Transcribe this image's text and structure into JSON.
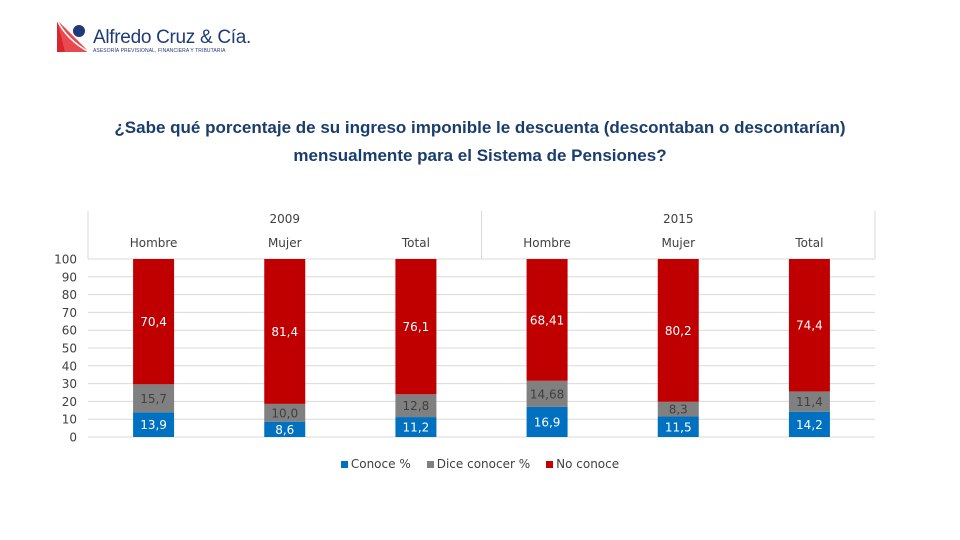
{
  "logo": {
    "name": "Alfredo Cruz & Cía.",
    "tagline": "ASESORÍA PREVISIONAL, FINANCIERA Y TRIBUTARIA"
  },
  "title_line1": "¿Sabe qué porcentaje de su ingreso imponible le descuenta (descontaban o descontarían)",
  "title_line2": "mensualmente para el Sistema de Pensiones?",
  "colors": {
    "conoce": "#0070c0",
    "dice_conocer": "#808080",
    "no_conoce": "#c00000"
  },
  "chart_data": {
    "type": "bar",
    "stacked": true,
    "title": "¿Sabe qué porcentaje de su ingreso imponible le descuenta (descontaban o descontarían) mensualmente para el Sistema de Pensiones?",
    "groups": [
      {
        "label": "2009",
        "categories": [
          "Hombre",
          "Mujer",
          "Total"
        ]
      },
      {
        "label": "2015",
        "categories": [
          "Hombre",
          "Mujer",
          "Total"
        ]
      }
    ],
    "categories": [
      "Hombre",
      "Mujer",
      "Total",
      "Hombre",
      "Mujer",
      "Total"
    ],
    "series": [
      {
        "name": "Conoce %",
        "values": [
          13.9,
          8.6,
          11.2,
          16.9,
          11.5,
          14.2
        ],
        "labels": [
          "13,9",
          "8,6",
          "11,2",
          "16,9",
          "11,5",
          "14,2"
        ]
      },
      {
        "name": "Dice conocer %",
        "values": [
          15.7,
          10.0,
          12.8,
          14.68,
          8.3,
          11.4
        ],
        "labels": [
          "15,7",
          "10,0",
          "12,8",
          "14,68",
          "8,3",
          "11,4"
        ]
      },
      {
        "name": "No conoce",
        "values": [
          70.4,
          81.4,
          76.1,
          68.41,
          80.2,
          74.4
        ],
        "labels": [
          "70,4",
          "81,4",
          "76,1",
          "68,41",
          "80,2",
          "74,4"
        ]
      }
    ],
    "xlabel": "",
    "ylabel": "",
    "ylim": [
      0,
      100
    ],
    "yticks": [
      0,
      10,
      20,
      30,
      40,
      50,
      60,
      70,
      80,
      90,
      100
    ],
    "grid": true,
    "legend_position": "bottom"
  }
}
